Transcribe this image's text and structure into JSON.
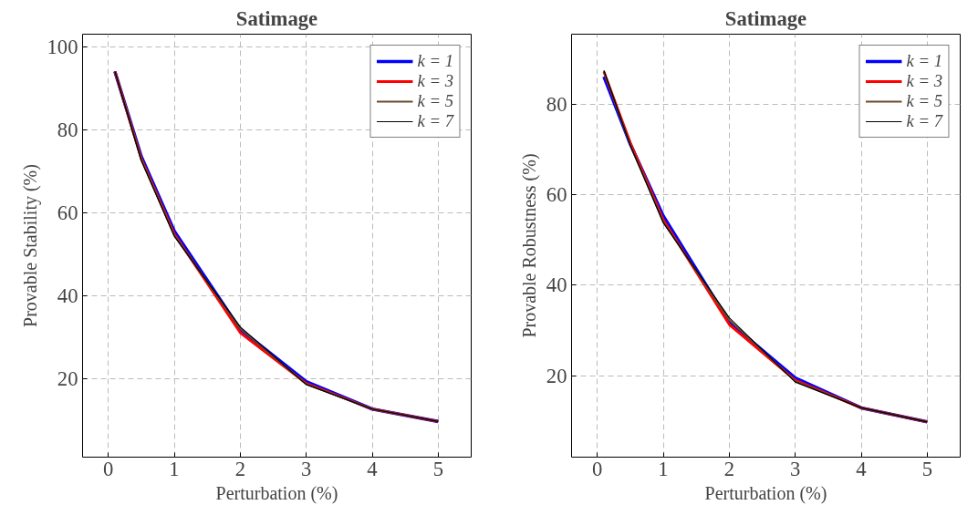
{
  "chart_data": [
    {
      "type": "line",
      "title": "Satimage",
      "xlabel": "Perturbation (%)",
      "ylabel": "Provable Stability (%)",
      "x": [
        0.1,
        0.5,
        1,
        2,
        3,
        4,
        5
      ],
      "xlim": [
        -0.39,
        5.5
      ],
      "ylim": [
        1,
        103
      ],
      "xticks": [
        0,
        1,
        2,
        3,
        4,
        5
      ],
      "yticks": [
        20,
        40,
        60,
        80,
        100
      ],
      "grid": true,
      "legend": "top right",
      "line_style": "solid",
      "series": [
        {
          "name": "k = 1",
          "color": "#0000ff",
          "values": [
            94,
            73.5,
            55.5,
            31.8,
            19.2,
            12.6,
            9.6
          ]
        },
        {
          "name": "k = 3",
          "color": "#ff0000",
          "values": [
            94,
            73,
            54.8,
            31.0,
            18.8,
            12.6,
            9.6
          ]
        },
        {
          "name": "k = 5",
          "color": "#6b4a2b",
          "values": [
            94,
            72.8,
            54.5,
            32.0,
            18.6,
            12.6,
            9.6
          ]
        },
        {
          "name": "k = 7",
          "color": "#000000",
          "values": [
            94,
            72.5,
            54.3,
            32.4,
            18.5,
            12.6,
            9.6
          ]
        }
      ]
    },
    {
      "type": "line",
      "title": "Satimage",
      "xlabel": "Perturbation (%)",
      "ylabel": "Provable Robustness (%)",
      "x": [
        0.1,
        0.5,
        1,
        2,
        3,
        4,
        5
      ],
      "xlim": [
        -0.39,
        5.5
      ],
      "ylim": [
        2,
        95.5
      ],
      "xticks": [
        0,
        1,
        2,
        3,
        4,
        5
      ],
      "yticks": [
        20,
        40,
        60,
        80
      ],
      "grid": true,
      "legend": "top right",
      "line_style": "solid",
      "series": [
        {
          "name": "k = 1",
          "color": "#0000ff",
          "values": [
            86.1,
            71.2,
            55.3,
            31.8,
            19.5,
            12.9,
            9.8
          ]
        },
        {
          "name": "k = 3",
          "color": "#ff0000",
          "values": [
            87.2,
            71.5,
            54.5,
            31.3,
            19.0,
            12.9,
            9.8
          ]
        },
        {
          "name": "k = 5",
          "color": "#6b4a2b",
          "values": [
            87.3,
            71.0,
            54.0,
            32.3,
            18.8,
            12.9,
            9.8
          ]
        },
        {
          "name": "k = 7",
          "color": "#000000",
          "values": [
            87.5,
            70.9,
            53.8,
            32.8,
            18.6,
            12.9,
            9.8
          ]
        }
      ]
    }
  ]
}
